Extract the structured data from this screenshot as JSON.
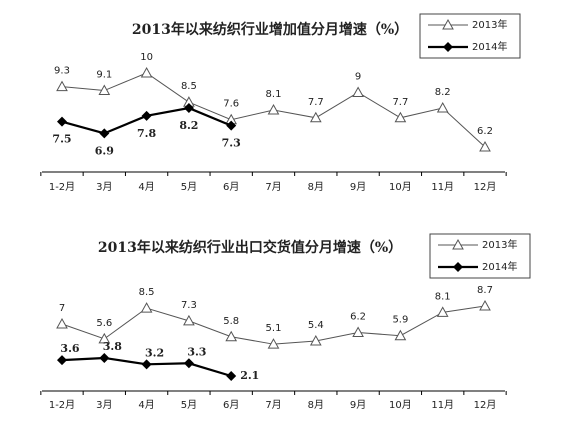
{
  "chart_data": [
    {
      "type": "line",
      "title": "2013年以来纺织行业增加值分月增速（%）",
      "categories": [
        "1-2月",
        "3月",
        "4月",
        "5月",
        "6月",
        "7月",
        "8月",
        "9月",
        "10月",
        "11月",
        "12月"
      ],
      "series": [
        {
          "name": "2013年",
          "color": "#555555",
          "values": [
            9.3,
            9.1,
            10,
            8.5,
            7.6,
            8.1,
            7.7,
            9,
            7.7,
            8.2,
            6.2
          ]
        },
        {
          "name": "2014年",
          "color": "#000000",
          "values": [
            7.5,
            6.9,
            7.8,
            8.2,
            7.3,
            null,
            null,
            null,
            null,
            null,
            null
          ]
        }
      ],
      "legend": "upper right"
    },
    {
      "type": "line",
      "title": "2013年以来纺织行业出口交货值分月增速（%）",
      "categories": [
        "1-2月",
        "3月",
        "4月",
        "5月",
        "6月",
        "7月",
        "8月",
        "9月",
        "10月",
        "11月",
        "12月"
      ],
      "series": [
        {
          "name": "2013年",
          "color": "#555555",
          "values": [
            7,
            5.6,
            8.5,
            7.3,
            5.8,
            5.1,
            5.4,
            6.2,
            5.9,
            8.1,
            8.7
          ]
        },
        {
          "name": "2014年",
          "color": "#000000",
          "values": [
            3.6,
            3.8,
            3.2,
            3.3,
            2.1,
            null,
            null,
            null,
            null,
            null,
            null
          ]
        }
      ],
      "legend": "upper right"
    }
  ]
}
